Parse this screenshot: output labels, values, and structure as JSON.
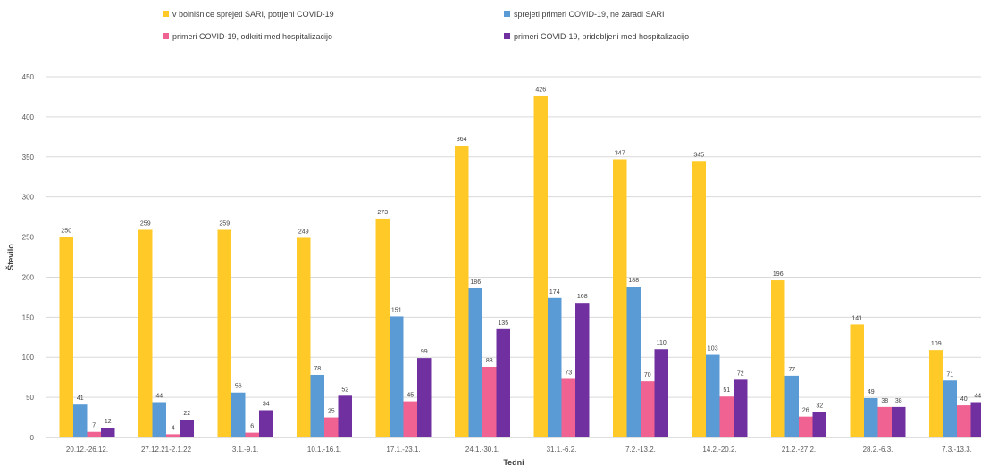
{
  "chart_data": {
    "type": "bar",
    "xlabel": "Tedni",
    "ylabel": "Število",
    "ylim": [
      0,
      450
    ],
    "yticks": [
      0,
      50,
      100,
      150,
      200,
      250,
      300,
      350,
      400,
      450
    ],
    "grid": true,
    "legend_position": "top",
    "categories": [
      "20.12.-26.12.",
      "27.12.21-2.1.22",
      "3.1.-9.1.",
      "10.1.-16.1.",
      "17.1.-23.1.",
      "24.1.-30.1.",
      "31.1.-6.2.",
      "7.2.-13.2.",
      "14.2.-20.2.",
      "21.2.-27.2.",
      "28.2.-6.3.",
      "7.3.-13.3."
    ],
    "series": [
      {
        "name": "v bolnišnice sprejeti SARI, potrjeni COVID-19",
        "color": "#FFCA28",
        "values": [
          250,
          259,
          259,
          249,
          273,
          364,
          426,
          347,
          345,
          196,
          141,
          109
        ]
      },
      {
        "name": "sprejeti primeri COVID-19, ne zaradi SARI",
        "color": "#5B9BD5",
        "values": [
          41,
          44,
          56,
          78,
          151,
          186,
          174,
          188,
          103,
          77,
          49,
          71
        ]
      },
      {
        "name": "primeri COVID-19, odkriti med hospitalizacijo",
        "color": "#F06292",
        "values": [
          7,
          4,
          6,
          25,
          45,
          88,
          73,
          70,
          51,
          26,
          38,
          40
        ]
      },
      {
        "name": "primeri COVID-19, pridobljeni med hospitalizacijo",
        "color": "#7030A0",
        "values": [
          12,
          22,
          34,
          52,
          99,
          135,
          168,
          110,
          72,
          32,
          38,
          44
        ]
      }
    ]
  }
}
